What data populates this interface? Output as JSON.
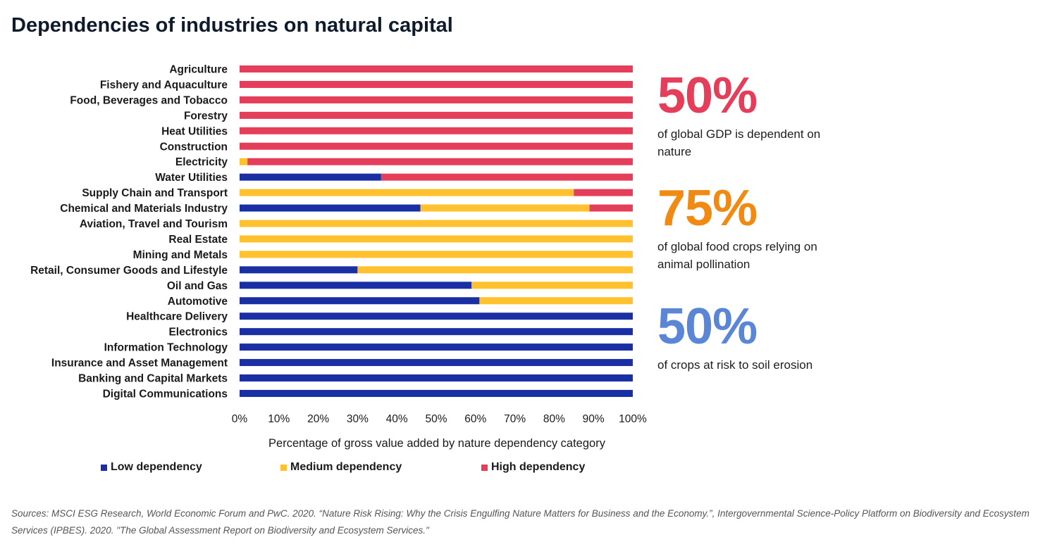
{
  "title": "Dependencies of industries on natural capital",
  "colors": {
    "low": "#1a2fa3",
    "medium": "#ffc12e",
    "high": "#e53e5a"
  },
  "chart_data": {
    "type": "bar",
    "orientation": "horizontal",
    "stacked": true,
    "categories": [
      "Agriculture",
      "Fishery and Aquaculture",
      "Food, Beverages and Tobacco",
      "Forestry",
      "Heat Utilities",
      "Construction",
      "Electricity",
      "Water Utilities",
      "Supply Chain and Transport",
      "Chemical and Materials Industry",
      "Aviation, Travel and Tourism",
      "Real Estate",
      "Mining and Metals",
      "Retail, Consumer Goods and Lifestyle",
      "Oil and Gas",
      "Automotive",
      "Healthcare Delivery",
      "Electronics",
      "Information Technology",
      "Insurance and Asset Management",
      "Banking and Capital Markets",
      "Digital Communications"
    ],
    "series": [
      {
        "name": "Low dependency",
        "key": "low",
        "values": [
          0,
          0,
          0,
          0,
          0,
          0,
          0,
          36,
          0,
          46,
          0,
          0,
          0,
          30,
          59,
          61,
          100,
          100,
          100,
          100,
          100,
          100
        ]
      },
      {
        "name": "Medium dependency",
        "key": "medium",
        "values": [
          0,
          0,
          0,
          0,
          0,
          0,
          2,
          0,
          85,
          43,
          100,
          100,
          100,
          70,
          41,
          39,
          0,
          0,
          0,
          0,
          0,
          0
        ]
      },
      {
        "name": "High dependency",
        "key": "high",
        "values": [
          100,
          100,
          100,
          100,
          100,
          100,
          98,
          64,
          15,
          11,
          0,
          0,
          0,
          0,
          0,
          0,
          0,
          0,
          0,
          0,
          0,
          0
        ]
      }
    ],
    "xlabel": "Percentage of gross value added by nature dependency category",
    "xlim": [
      0,
      100
    ],
    "xticks": [
      "0%",
      "10%",
      "20%",
      "30%",
      "40%",
      "50%",
      "60%",
      "70%",
      "80%",
      "90%",
      "100%"
    ],
    "legend_position": "bottom",
    "grid": false
  },
  "stats": [
    {
      "value": "50%",
      "text": "of global GDP is dependent on nature",
      "color": "#e53e5a"
    },
    {
      "value": "75%",
      "text": "of global food crops relying on animal pollination",
      "color": "#f08a12"
    },
    {
      "value": "50%",
      "text": "of crops at risk to soil erosion",
      "color": "#5b86d6"
    }
  ],
  "legend": {
    "low": "Low dependency",
    "medium": "Medium dependency",
    "high": "High dependency"
  },
  "sources": "Sources: MSCI ESG Research, World Economic Forum and PwC. 2020. “Nature Risk Rising: Why the Crisis Engulfing Nature Matters for Business and the Economy.”, Intergovernmental Science-Policy Platform on Biodiversity and Ecosystem Services (IPBES). 2020. \"The Global Assessment Report on Biodiversity and Ecosystem Services.\""
}
